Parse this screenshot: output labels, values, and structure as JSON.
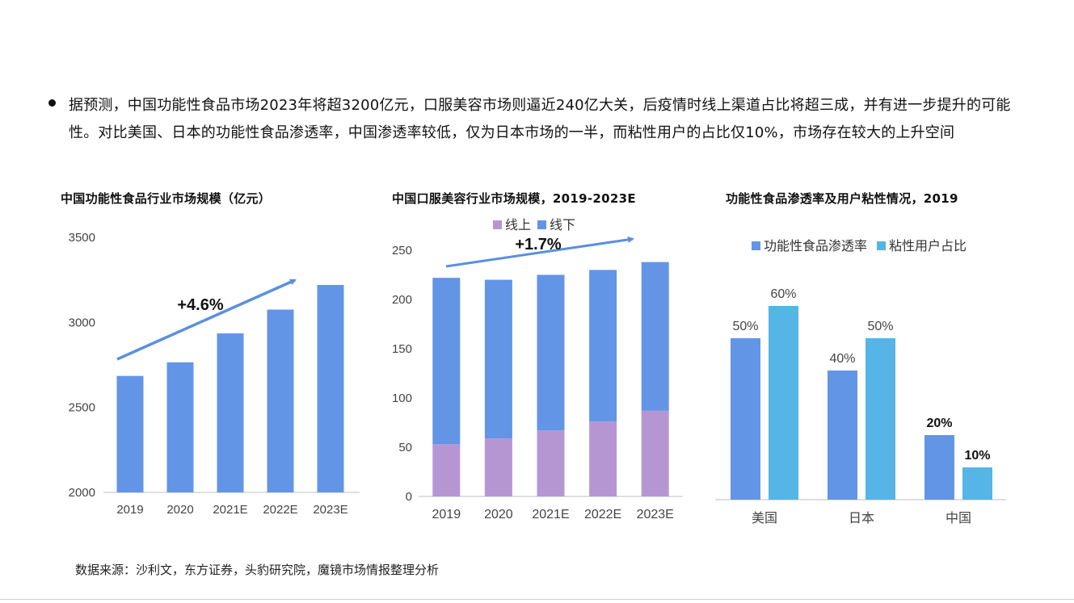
{
  "summary": "据预测，中国功能性食品市场2023年将超3200亿元，口服美容市场则逼近240亿大关，后疫情时线上渠道占比将超三成，并有进一步提升的可能性。对比美国、日本的功能性食品渗透率，中国渗透率较低，仅为日本市场的一半，而粘性用户的占比仅10%，市场存在较大的上升空间",
  "source": "数据来源：沙利文，东方证券，头豹研究院，魔镜市场情报整理分析",
  "colors": {
    "blue": "#6395e6",
    "purple": "#b596d3",
    "cyan": "#55b5e6",
    "arrow": "#5b8fdf"
  },
  "chart_data": [
    {
      "type": "bar",
      "title": "中国功能性食品行业市场规模（亿元）",
      "categories": [
        "2019",
        "2020",
        "2021E",
        "2022E",
        "2023E"
      ],
      "values": [
        2685,
        2765,
        2935,
        3075,
        3220
      ],
      "ylim": [
        2000,
        3500
      ],
      "yticks": [
        "2000",
        "2500",
        "3000",
        "3500"
      ],
      "grid": false,
      "annotation": "+4.6%"
    },
    {
      "type": "bar",
      "stacked": true,
      "title": "中国口服美容行业市场规模，2019-2023E",
      "categories": [
        "2019",
        "2020",
        "2021E",
        "2022E",
        "2023E"
      ],
      "series": [
        {
          "name": "线上",
          "values": [
            53,
            59,
            67,
            76,
            87
          ]
        },
        {
          "name": "线下",
          "values": [
            169,
            161,
            158,
            154,
            151
          ]
        }
      ],
      "ylim": [
        0,
        250
      ],
      "yticks": [
        "0",
        "50",
        "100",
        "150",
        "200",
        "250"
      ],
      "grid": false,
      "legend": "top",
      "annotation": "+1.7%"
    },
    {
      "type": "bar",
      "title": "功能性食品渗透率及用户粘性情况，2019",
      "categories": [
        "美国",
        "日本",
        "中国"
      ],
      "series": [
        {
          "name": "功能性食品渗透率",
          "values": [
            50,
            40,
            20
          ],
          "labels": [
            "50%",
            "40%",
            "20%"
          ]
        },
        {
          "name": "粘性用户占比",
          "values": [
            60,
            50,
            10
          ],
          "labels": [
            "60%",
            "50%",
            "10%"
          ]
        }
      ],
      "ylim": [
        0,
        75
      ],
      "grid": false,
      "legend": "top"
    }
  ]
}
